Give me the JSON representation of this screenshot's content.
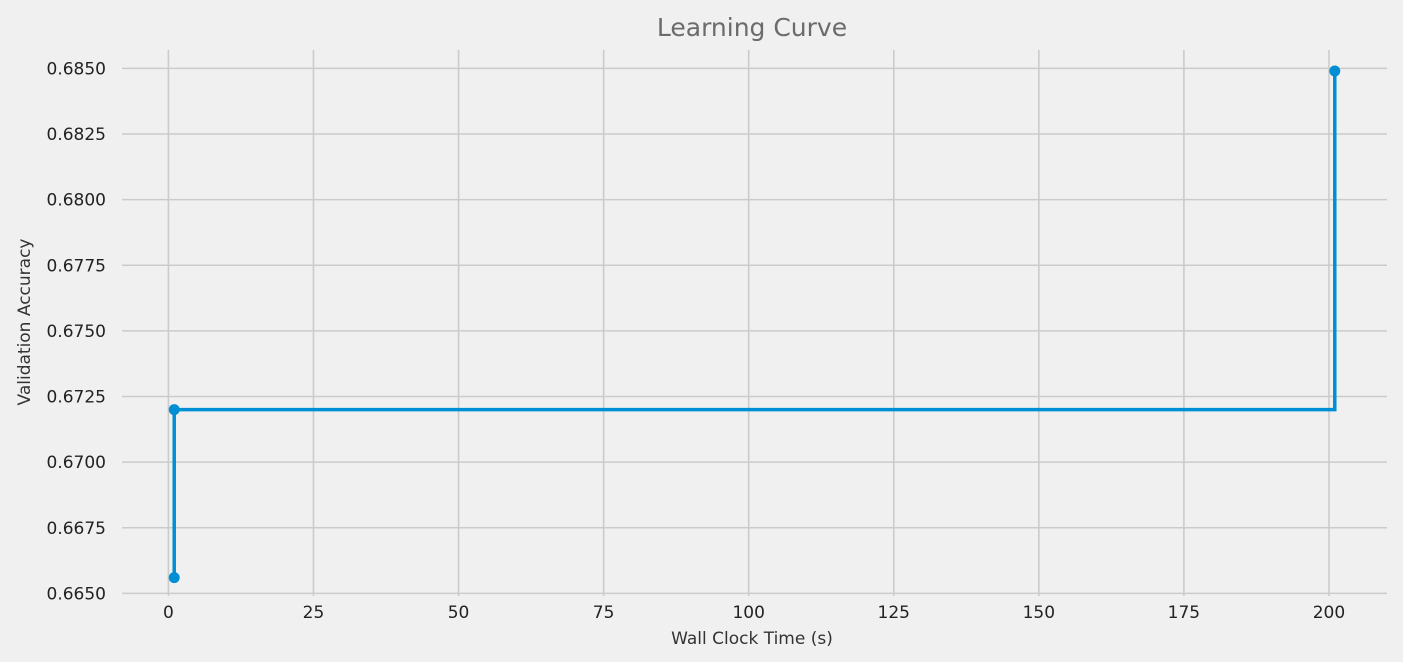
{
  "chart_data": {
    "type": "line",
    "title": "Learning Curve",
    "xlabel": "Wall Clock Time (s)",
    "ylabel": "Validation Accuracy",
    "step": "post",
    "grid": true,
    "line_color": "#008fd5",
    "xlim": [
      -8,
      210
    ],
    "ylim": [
      0.6649,
      0.6857
    ],
    "x_ticks": [
      0,
      25,
      50,
      75,
      100,
      125,
      150,
      175,
      200
    ],
    "y_ticks": [
      0.665,
      0.6675,
      0.67,
      0.6725,
      0.675,
      0.6775,
      0.68,
      0.6825,
      0.685
    ],
    "x_tick_labels": [
      "0",
      "25",
      "50",
      "75",
      "100",
      "125",
      "150",
      "175",
      "200"
    ],
    "y_tick_labels": [
      "0.6650",
      "0.6675",
      "0.6700",
      "0.6725",
      "0.6750",
      "0.6775",
      "0.6800",
      "0.6825",
      "0.6850"
    ],
    "series": [
      {
        "x": [
          1,
          1,
          201
        ],
        "y": [
          0.6656,
          0.672,
          0.6849
        ]
      }
    ]
  }
}
